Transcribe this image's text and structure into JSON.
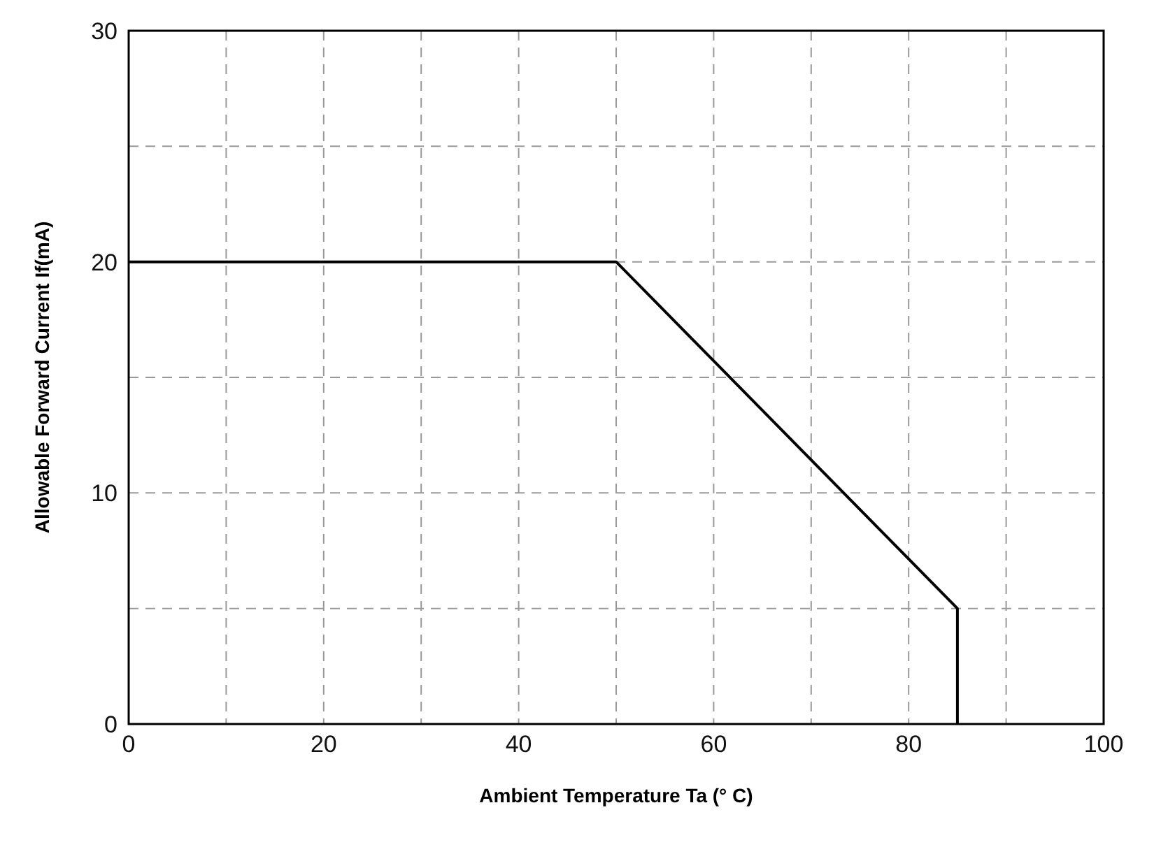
{
  "chart_data": {
    "type": "line",
    "xlabel": "Ambient Temperature Ta (° C)",
    "ylabel": "Allowable Forward Current If(mA)",
    "x": [
      0,
      50,
      85,
      85
    ],
    "series": [
      {
        "color": "#000000",
        "values": [
          20,
          20,
          5,
          0
        ]
      }
    ],
    "xlim": [
      0,
      100
    ],
    "xticks": [
      0,
      {
        "value": 10,
        "label": null
      },
      20,
      {
        "value": 30,
        "label": null
      },
      40,
      {
        "value": 50,
        "label": null
      },
      60,
      {
        "value": 70,
        "label": null
      },
      80,
      {
        "value": 90,
        "label": null
      },
      100
    ],
    "ylim": [
      0,
      30
    ],
    "yticks": [
      0,
      {
        "value": 5,
        "label": null
      },
      10,
      {
        "value": 15,
        "label": null
      },
      20,
      {
        "value": 25,
        "label": null
      },
      30
    ],
    "grid": true,
    "legend": false,
    "marker": "none",
    "line_style": "solid"
  }
}
